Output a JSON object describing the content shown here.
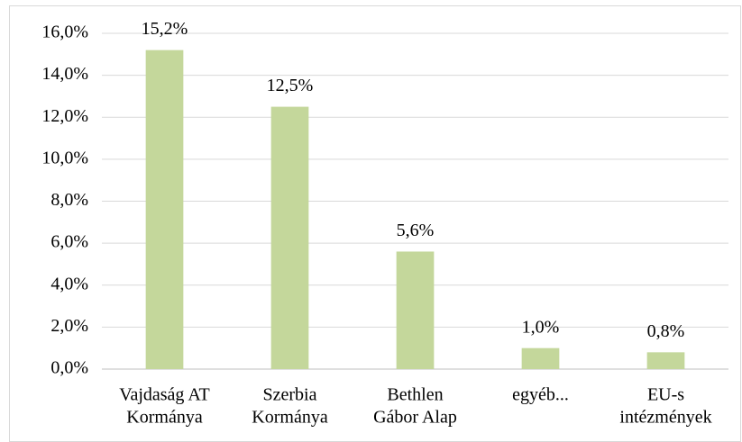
{
  "chart_data": {
    "type": "bar",
    "categories": [
      [
        "Vajdaság AT",
        "Kormánya"
      ],
      [
        "Szerbia",
        "Kormánya"
      ],
      [
        "Bethlen",
        "Gábor Alap"
      ],
      [
        "egyéb..."
      ],
      [
        "EU-s",
        "intézmények"
      ]
    ],
    "values": [
      15.2,
      12.5,
      5.6,
      1.0,
      0.8
    ],
    "value_labels": [
      "15,2%",
      "12,5%",
      "5,6%",
      "1,0%",
      "0,8%"
    ],
    "color": "#c4d79b",
    "ylim": [
      0,
      16
    ],
    "yticks": [
      {
        "value": 0,
        "label": "0,0%"
      },
      {
        "value": 2,
        "label": "2,0%"
      },
      {
        "value": 4,
        "label": "4,0%"
      },
      {
        "value": 6,
        "label": "6,0%"
      },
      {
        "value": 8,
        "label": "8,0%"
      },
      {
        "value": 10,
        "label": "10,0%"
      },
      {
        "value": 12,
        "label": "12,0%"
      },
      {
        "value": 14,
        "label": "14,0%"
      },
      {
        "value": 16,
        "label": "16,0%"
      }
    ],
    "grid": true
  }
}
